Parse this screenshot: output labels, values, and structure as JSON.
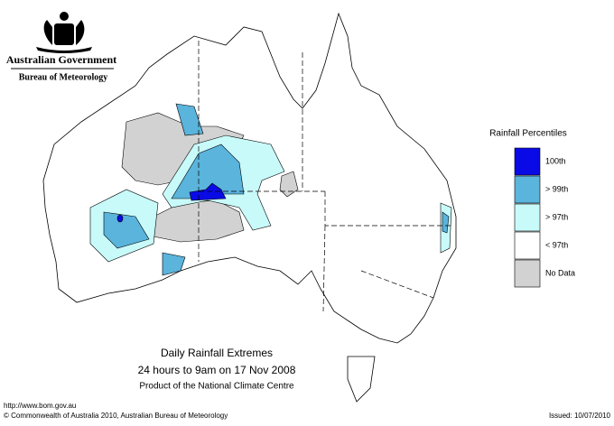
{
  "header": {
    "agency": "Australian Government",
    "bureau": "Bureau of Meteorology"
  },
  "legend": {
    "title": "Rainfall Percentiles",
    "items": [
      {
        "label": "100th",
        "color": "#0a0ae6"
      },
      {
        "label": "> 99th",
        "color": "#5ab4dc"
      },
      {
        "label": "> 97th",
        "color": "#c8fafa"
      },
      {
        "label": "< 97th",
        "color": "#ffffff"
      },
      {
        "label": "No Data",
        "color": "#d2d2d2"
      }
    ]
  },
  "map_title": {
    "line1": "Daily Rainfall Extremes",
    "line2": "24 hours to 9am on 17 Nov 2008",
    "line3": "Product of the National Climate Centre"
  },
  "footer": {
    "url": "http://www.bom.gov.au",
    "copyright": "© Commonwealth of Australia 2010, Australian Bureau of Meteorology",
    "issued": "Issued: 10/07/2010"
  }
}
